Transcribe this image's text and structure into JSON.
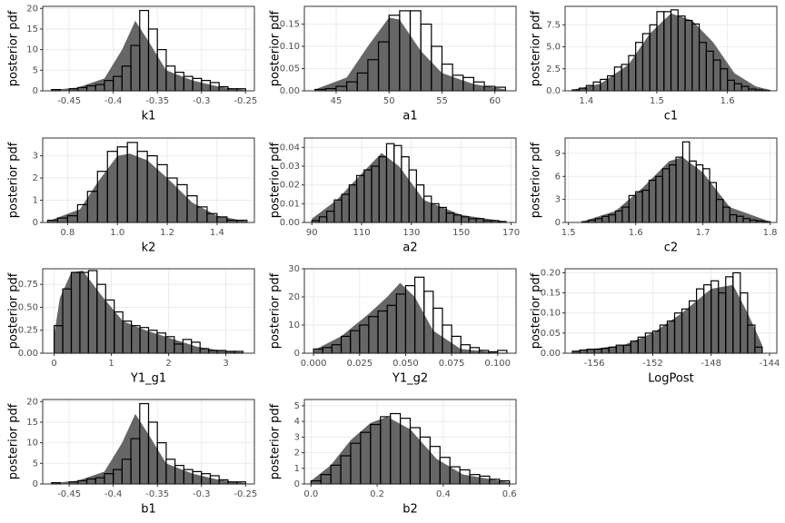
{
  "chart_data": [
    {
      "type": "histogram",
      "ylabel": "posterior pdf",
      "xlabel": "k1",
      "xlim": [
        -0.48,
        -0.24
      ],
      "xticks": [
        -0.45,
        -0.4,
        -0.35,
        -0.3,
        -0.25
      ],
      "ylim": [
        0,
        20.5
      ],
      "yticks": [
        0,
        5,
        10,
        15,
        20
      ],
      "grid": true,
      "color": "#000000",
      "density_color": "#666666",
      "bins": [
        -0.47,
        -0.46,
        -0.45,
        -0.44,
        -0.43,
        -0.42,
        -0.41,
        -0.4,
        -0.39,
        -0.38,
        -0.37,
        -0.36,
        -0.35,
        -0.34,
        -0.33,
        -0.32,
        -0.31,
        -0.3,
        -0.29,
        -0.28,
        -0.27,
        -0.26,
        -0.25
      ],
      "values": [
        0.3,
        0,
        0.5,
        0.8,
        1.2,
        1.5,
        2.5,
        3.5,
        6,
        11,
        19.5,
        15,
        10,
        6,
        4.5,
        3.5,
        3,
        2.5,
        2,
        1,
        0.5,
        0.5
      ],
      "density": {
        "x": [
          -0.47,
          -0.44,
          -0.41,
          -0.39,
          -0.375,
          -0.36,
          -0.34,
          -0.31,
          -0.28,
          -0.25
        ],
        "values": [
          0.2,
          0.8,
          3,
          10,
          17,
          12,
          5,
          2.5,
          1,
          0.2
        ]
      }
    },
    {
      "type": "histogram",
      "ylabel": "posterior pdf",
      "xlabel": "a1",
      "xlim": [
        42,
        62
      ],
      "xticks": [
        45,
        50,
        55,
        60
      ],
      "ylim": [
        0,
        0.19
      ],
      "yticks": [
        {
          "value": 0,
          "label": "0.00"
        },
        {
          "value": 0.05,
          "label": "0.05"
        },
        {
          "value": 0.1,
          "label": "0.10"
        },
        {
          "value": 0.15,
          "label": "0.15"
        }
      ],
      "grid": true,
      "color": "#000000",
      "density_color": "#666666",
      "bins": [
        43,
        44,
        45,
        46,
        47,
        48,
        49,
        50,
        51,
        52,
        53,
        54,
        55,
        56,
        57,
        58,
        59,
        60,
        61
      ],
      "values": [
        0.003,
        0.005,
        0.01,
        0.02,
        0.04,
        0.07,
        0.11,
        0.17,
        0.18,
        0.18,
        0.15,
        0.1,
        0.06,
        0.035,
        0.03,
        0.02,
        0.01,
        0.008
      ],
      "density": {
        "x": [
          43,
          46,
          48,
          50,
          51,
          53,
          55,
          58,
          61
        ],
        "values": [
          0.003,
          0.03,
          0.1,
          0.165,
          0.16,
          0.09,
          0.04,
          0.015,
          0.003
        ]
      }
    },
    {
      "type": "histogram",
      "ylabel": "posterior pdf",
      "xlabel": "c1",
      "xlim": [
        1.37,
        1.67
      ],
      "xticks": [
        1.4,
        1.5,
        1.6
      ],
      "ylim": [
        0,
        9.6
      ],
      "yticks": [
        {
          "value": 0,
          "label": "0.0"
        },
        2.5,
        {
          "value": 5,
          "label": "5.0"
        },
        7.5
      ],
      "grid": true,
      "color": "#000000",
      "density_color": "#666666",
      "bins": [
        1.38,
        1.39,
        1.4,
        1.41,
        1.42,
        1.43,
        1.44,
        1.45,
        1.46,
        1.47,
        1.48,
        1.49,
        1.5,
        1.51,
        1.52,
        1.53,
        1.54,
        1.55,
        1.56,
        1.57,
        1.58,
        1.59,
        1.6,
        1.61,
        1.62,
        1.63,
        1.64,
        1.65,
        1.66
      ],
      "values": [
        0.1,
        0.3,
        0.6,
        1,
        1.3,
        1.7,
        2.7,
        3,
        4,
        5.5,
        6.5,
        7.5,
        9,
        9,
        9.2,
        8.5,
        8,
        7.6,
        5.5,
        4.5,
        3.5,
        2.5,
        1.2,
        0.8,
        0.5,
        0.2,
        0.1,
        0.05
      ],
      "density": {
        "x": [
          1.38,
          1.42,
          1.46,
          1.49,
          1.52,
          1.55,
          1.58,
          1.61,
          1.64,
          1.66
        ],
        "values": [
          0.1,
          0.8,
          3,
          6.5,
          8.8,
          8,
          5.5,
          2,
          0.5,
          0.1
        ]
      }
    },
    {
      "type": "histogram",
      "ylabel": "posterior pdf",
      "xlabel": "k2",
      "xlim": [
        0.7,
        1.55
      ],
      "xticks": [
        0.8,
        {
          "value": 1,
          "label": "1.0"
        },
        1.2,
        1.4
      ],
      "ylim": [
        0,
        3.8
      ],
      "yticks": [
        0,
        1,
        2,
        3
      ],
      "grid": true,
      "color": "#000000",
      "density_color": "#666666",
      "bins": [
        0.72,
        0.76,
        0.8,
        0.84,
        0.88,
        0.92,
        0.96,
        1.0,
        1.04,
        1.08,
        1.12,
        1.16,
        1.2,
        1.24,
        1.28,
        1.32,
        1.36,
        1.4,
        1.44,
        1.48,
        1.52
      ],
      "values": [
        0.1,
        0.2,
        0.3,
        0.8,
        1.4,
        2.3,
        3.2,
        3.4,
        3.6,
        3.2,
        3,
        2.6,
        2,
        1.7,
        1.2,
        0.7,
        0.4,
        0.25,
        0.1,
        0.1
      ],
      "density": {
        "x": [
          0.72,
          0.85,
          0.92,
          1.0,
          1.05,
          1.12,
          1.2,
          1.3,
          1.4,
          1.52
        ],
        "values": [
          0.05,
          0.6,
          1.8,
          3.0,
          3.1,
          2.8,
          2.0,
          0.9,
          0.3,
          0.05
        ]
      }
    },
    {
      "type": "histogram",
      "ylabel": "posterior pdf",
      "xlabel": "a2",
      "xlim": [
        87,
        172
      ],
      "xticks": [
        90,
        110,
        130,
        150,
        170
      ],
      "ylim": [
        0,
        0.045
      ],
      "yticks": [
        {
          "value": 0,
          "label": "0.00"
        },
        0.01,
        0.02,
        0.03,
        0.04
      ],
      "grid": true,
      "color": "#000000",
      "density_color": "#666666",
      "bins": [
        90,
        93,
        96,
        99,
        102,
        105,
        108,
        111,
        114,
        117,
        120,
        123,
        126,
        129,
        132,
        135,
        138,
        141,
        144,
        147,
        150,
        153,
        156,
        159,
        162,
        165,
        168
      ],
      "values": [
        0.001,
        0.003,
        0.006,
        0.012,
        0.015,
        0.02,
        0.025,
        0.028,
        0.03,
        0.035,
        0.042,
        0.041,
        0.035,
        0.028,
        0.02,
        0.014,
        0.01,
        0.008,
        0.005,
        0.004,
        0.003,
        0.002,
        0.002,
        0.001,
        0.001,
        0.0005
      ],
      "density": {
        "x": [
          90,
          100,
          110,
          118,
          125,
          135,
          150,
          168
        ],
        "values": [
          0.002,
          0.012,
          0.026,
          0.037,
          0.03,
          0.012,
          0.004,
          0.0005
        ]
      }
    },
    {
      "type": "histogram",
      "ylabel": "posterior pdf",
      "xlabel": "c2",
      "xlim": [
        1.495,
        1.81
      ],
      "xticks": [
        1.5,
        1.6,
        1.7,
        1.8
      ],
      "ylim": [
        0,
        11
      ],
      "yticks": [
        0,
        3,
        6,
        9
      ],
      "grid": true,
      "color": "#000000",
      "density_color": "#666666",
      "bins": [
        1.52,
        1.53,
        1.54,
        1.55,
        1.56,
        1.57,
        1.58,
        1.59,
        1.6,
        1.61,
        1.62,
        1.63,
        1.64,
        1.65,
        1.66,
        1.67,
        1.68,
        1.69,
        1.7,
        1.71,
        1.72,
        1.73,
        1.74,
        1.75,
        1.76,
        1.77,
        1.78,
        1.79,
        1.8
      ],
      "values": [
        0.1,
        0.3,
        0.5,
        0.8,
        1,
        1.5,
        2,
        3.5,
        4,
        4.2,
        5.5,
        6,
        7,
        7.5,
        8.5,
        10.5,
        8,
        7.5,
        7,
        5.2,
        3,
        2,
        1,
        0.8,
        0.5,
        0.3,
        0.2,
        0.1
      ],
      "density": {
        "x": [
          1.52,
          1.57,
          1.61,
          1.65,
          1.67,
          1.7,
          1.74,
          1.8
        ],
        "values": [
          0.1,
          1.5,
          4.5,
          8,
          8.5,
          6.5,
          2,
          0.1
        ]
      }
    },
    {
      "type": "histogram",
      "ylabel": "posterior pdf",
      "xlabel": "Y1_g1",
      "xlim": [
        -0.2,
        3.5
      ],
      "xticks": [
        0,
        1,
        2,
        3
      ],
      "ylim": [
        0,
        0.92
      ],
      "yticks": [
        {
          "value": 0,
          "label": "0.00"
        },
        0.25,
        {
          "value": 0.5,
          "label": "0.50"
        },
        0.75
      ],
      "grid": true,
      "color": "#000000",
      "density_color": "#666666",
      "bins": [
        0,
        0.15,
        0.3,
        0.45,
        0.6,
        0.75,
        0.9,
        1.05,
        1.2,
        1.35,
        1.5,
        1.65,
        1.8,
        1.95,
        2.1,
        2.25,
        2.4,
        2.55,
        2.7,
        2.85,
        3.0,
        3.15,
        3.3
      ],
      "values": [
        0.3,
        0.7,
        0.88,
        0.88,
        0.9,
        0.75,
        0.58,
        0.45,
        0.35,
        0.3,
        0.28,
        0.25,
        0.22,
        0.18,
        0.1,
        0.15,
        0.12,
        0.05,
        0.03,
        0.03,
        0.02,
        0.02
      ],
      "density": {
        "x": [
          0,
          0.1,
          0.3,
          0.5,
          0.8,
          1.2,
          1.6,
          2,
          2.5,
          3,
          3.3
        ],
        "values": [
          0.2,
          0.6,
          0.88,
          0.9,
          0.65,
          0.35,
          0.25,
          0.17,
          0.07,
          0.02,
          0.01
        ]
      }
    },
    {
      "type": "histogram",
      "ylabel": "posterior pdf",
      "xlabel": "Y1_g2",
      "xlim": [
        -0.005,
        0.11
      ],
      "xticks": [
        {
          "value": 0,
          "label": "0.000"
        },
        0.025,
        {
          "value": 0.05,
          "label": "0.050"
        },
        0.075,
        {
          "value": 0.1,
          "label": "0.100"
        }
      ],
      "ylim": [
        0,
        30
      ],
      "yticks": [
        0,
        10,
        20,
        30
      ],
      "grid": true,
      "color": "#000000",
      "density_color": "#666666",
      "bins": [
        0,
        0.005,
        0.01,
        0.015,
        0.02,
        0.025,
        0.03,
        0.035,
        0.04,
        0.045,
        0.05,
        0.055,
        0.06,
        0.065,
        0.07,
        0.075,
        0.08,
        0.085,
        0.09,
        0.095,
        0.1,
        0.105
      ],
      "values": [
        1.5,
        2,
        3,
        6,
        8,
        10,
        13,
        15,
        17,
        21,
        24,
        27,
        22,
        16,
        10,
        6,
        3,
        2,
        1,
        0.5,
        1
      ],
      "density": {
        "x": [
          0,
          0.015,
          0.03,
          0.04,
          0.047,
          0.055,
          0.065,
          0.08,
          0.1
        ],
        "values": [
          1,
          6,
          14,
          20,
          25,
          20,
          8,
          1.5,
          0.2
        ]
      }
    },
    {
      "type": "histogram",
      "ylabel": "posterior pdf",
      "xlabel": "LogPost",
      "xlim": [
        -158,
        -143.5
      ],
      "xticks": [
        -156,
        -152,
        -148,
        -144
      ],
      "ylim": [
        0,
        0.21
      ],
      "yticks": [
        {
          "value": 0,
          "label": "0.00"
        },
        0.05,
        {
          "value": 0.1,
          "label": "0.10"
        },
        0.15,
        {
          "value": 0.2,
          "label": "0.20"
        }
      ],
      "grid": true,
      "color": "#000000",
      "density_color": "#666666",
      "bins": [
        -157.5,
        -157,
        -156.5,
        -156,
        -155.5,
        -155,
        -154.5,
        -154,
        -153.5,
        -153,
        -152.5,
        -152,
        -151.5,
        -151,
        -150.5,
        -150,
        -149.5,
        -149,
        -148.5,
        -148,
        -147.5,
        -147,
        -146.5,
        -146,
        -145.5,
        -145,
        -144.5
      ],
      "values": [
        0.005,
        0.008,
        0.01,
        0.01,
        0.012,
        0.015,
        0.02,
        0.02,
        0.03,
        0.04,
        0.05,
        0.055,
        0.07,
        0.08,
        0.1,
        0.11,
        0.13,
        0.16,
        0.17,
        0.18,
        0.15,
        0.19,
        0.2,
        0.15,
        0.07,
        0.015
      ],
      "density": {
        "x": [
          -157.5,
          -154,
          -152,
          -150,
          -148,
          -146.5,
          -145.5,
          -144.5
        ],
        "values": [
          0.005,
          0.02,
          0.05,
          0.1,
          0.16,
          0.17,
          0.1,
          0.02
        ]
      }
    },
    {
      "type": "histogram",
      "ylabel": "posterior pdf",
      "xlabel": "b1",
      "xlim": [
        -0.48,
        -0.24
      ],
      "xticks": [
        -0.45,
        -0.4,
        -0.35,
        -0.3,
        -0.25
      ],
      "ylim": [
        0,
        20.5
      ],
      "yticks": [
        0,
        5,
        10,
        15,
        20
      ],
      "grid": true,
      "color": "#000000",
      "density_color": "#666666",
      "bins": [
        -0.47,
        -0.46,
        -0.45,
        -0.44,
        -0.43,
        -0.42,
        -0.41,
        -0.4,
        -0.39,
        -0.38,
        -0.37,
        -0.36,
        -0.35,
        -0.34,
        -0.33,
        -0.32,
        -0.31,
        -0.3,
        -0.29,
        -0.28,
        -0.27,
        -0.26,
        -0.25
      ],
      "values": [
        0.3,
        0,
        0.5,
        0.8,
        1.2,
        1.5,
        2.5,
        3.5,
        6,
        11,
        19.5,
        15,
        10,
        6,
        4.5,
        3.5,
        3,
        2.5,
        2,
        1,
        0.5,
        0.5
      ],
      "density": {
        "x": [
          -0.47,
          -0.44,
          -0.41,
          -0.39,
          -0.375,
          -0.36,
          -0.34,
          -0.31,
          -0.28,
          -0.25
        ],
        "values": [
          0.2,
          0.8,
          3,
          10,
          17,
          12,
          5,
          2.5,
          1,
          0.2
        ]
      }
    },
    {
      "type": "histogram",
      "ylabel": "posterior pdf",
      "xlabel": "b2",
      "xlim": [
        -0.02,
        0.62
      ],
      "xticks": [
        {
          "value": 0,
          "label": "0.0"
        },
        0.2,
        0.4,
        0.6
      ],
      "ylim": [
        0,
        5.4
      ],
      "yticks": [
        0,
        1,
        2,
        3,
        4,
        5
      ],
      "grid": true,
      "color": "#000000",
      "density_color": "#666666",
      "bins": [
        0,
        0.03,
        0.06,
        0.09,
        0.12,
        0.15,
        0.18,
        0.21,
        0.24,
        0.27,
        0.3,
        0.33,
        0.36,
        0.39,
        0.42,
        0.45,
        0.48,
        0.51,
        0.54,
        0.57,
        0.6
      ],
      "values": [
        0.2,
        0.6,
        1.2,
        1.8,
        2.6,
        3.3,
        3.8,
        4.3,
        4.5,
        4.2,
        3.6,
        3.0,
        2.4,
        1.7,
        1.1,
        0.9,
        0.6,
        0.5,
        0.3,
        0.2
      ],
      "density": {
        "x": [
          0,
          0.06,
          0.12,
          0.18,
          0.23,
          0.3,
          0.38,
          0.46,
          0.6
        ],
        "values": [
          0.2,
          1.2,
          2.8,
          3.9,
          4.3,
          3.5,
          1.6,
          0.6,
          0.1
        ]
      }
    }
  ]
}
